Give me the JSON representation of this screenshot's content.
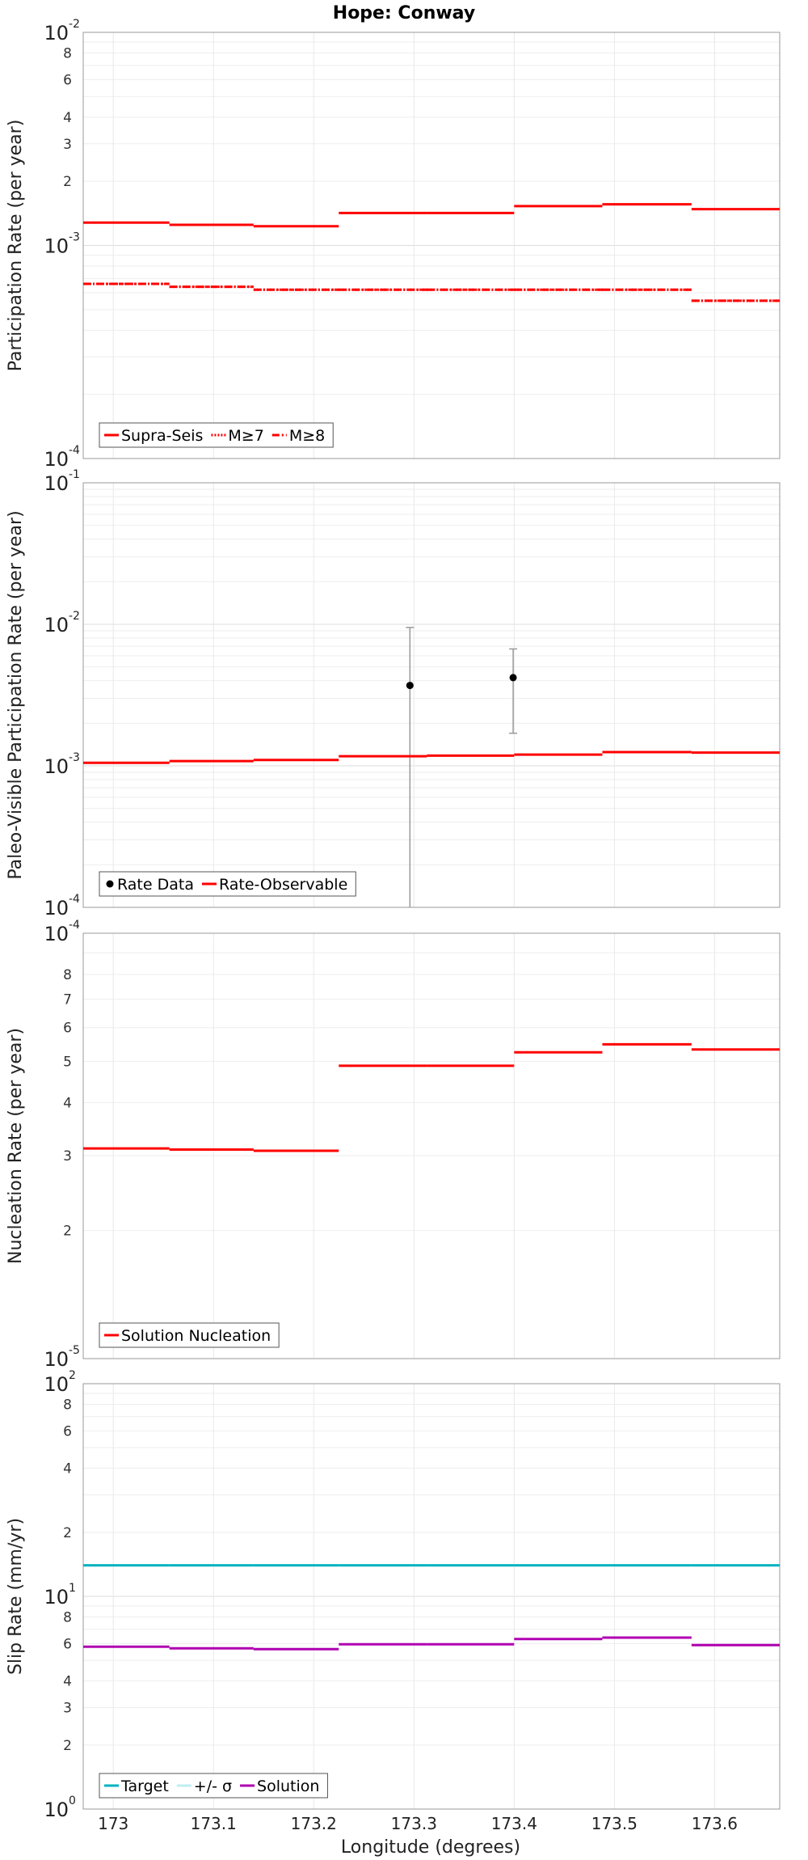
{
  "title": "Hope: Conway",
  "xlabel": "Longitude (degrees)",
  "x_ticks": [
    "173",
    "173.1",
    "173.2",
    "173.3",
    "173.4",
    "173.5",
    "173.6"
  ],
  "colors": {
    "red": "#ff0000",
    "cyan": "#00b3c0",
    "magenta": "#b000b0",
    "black": "#000000",
    "errorbar": "#9a9a9a",
    "grid": "#e4e4e4"
  },
  "chart_data": [
    {
      "type": "line",
      "subplot": "participation",
      "ylabel": "Participation Rate (per year)",
      "yscale": "log",
      "ylim": [
        0.0001,
        0.01
      ],
      "xlim": [
        172.97,
        173.665
      ],
      "decade_labels": [
        {
          "value": 0.01,
          "base": "10",
          "exp": "-2"
        },
        {
          "value": 0.001,
          "base": "10",
          "exp": "-3"
        },
        {
          "value": 0.0001,
          "base": "10",
          "exp": "-4"
        }
      ],
      "minor_labels": [
        "8",
        "6",
        "4",
        "3",
        "2"
      ],
      "x_bins": [
        172.97,
        173.056,
        173.14,
        173.225,
        173.313,
        173.4,
        173.488,
        173.577,
        173.665
      ],
      "series": [
        {
          "name": "Supra-Seis",
          "style": "solid",
          "color": "#ff0000",
          "values": [
            0.00128,
            0.00125,
            0.00123,
            0.00142,
            0.00142,
            0.00153,
            0.00156,
            0.00148
          ]
        },
        {
          "name": "M≥7",
          "style": "dotted",
          "color": "#ff0000",
          "values": [
            0.00066,
            0.00064,
            0.00062,
            0.00062,
            0.00062,
            0.00062,
            0.00062,
            0.00055
          ]
        },
        {
          "name": "M≥8",
          "style": "dashdot",
          "color": "#ff0000",
          "values": [
            0.00066,
            0.00064,
            0.00062,
            0.00062,
            0.00062,
            0.00062,
            0.00062,
            0.00055
          ]
        }
      ],
      "legend": [
        {
          "label": "Supra-Seis",
          "style": "solid",
          "color": "#ff0000"
        },
        {
          "label": "M≥7",
          "style": "dotted",
          "color": "#ff0000"
        },
        {
          "label": "M≥8",
          "style": "dashdot",
          "color": "#ff0000"
        }
      ],
      "legend_position": "lower-left",
      "grid": true
    },
    {
      "type": "line",
      "subplot": "paleo",
      "ylabel": "Paleo-Visible Participation Rate (per year)",
      "yscale": "log",
      "ylim": [
        0.0001,
        0.1
      ],
      "xlim": [
        172.97,
        173.665
      ],
      "decade_labels": [
        {
          "value": 0.1,
          "base": "10",
          "exp": "-1"
        },
        {
          "value": 0.01,
          "base": "10",
          "exp": "-2"
        },
        {
          "value": 0.001,
          "base": "10",
          "exp": "-3"
        },
        {
          "value": 0.0001,
          "base": "10",
          "exp": "-4"
        }
      ],
      "minor_labels": [],
      "x_bins": [
        172.97,
        173.056,
        173.14,
        173.225,
        173.313,
        173.4,
        173.488,
        173.577,
        173.665
      ],
      "series": [
        {
          "name": "Rate-Observable",
          "style": "solid",
          "color": "#ff0000",
          "values": [
            0.00105,
            0.00108,
            0.0011,
            0.00117,
            0.00118,
            0.0012,
            0.00125,
            0.00124
          ]
        }
      ],
      "points": [
        {
          "x": 173.296,
          "y": 0.0037,
          "low": 0.0001,
          "high": 0.0095
        },
        {
          "x": 173.399,
          "y": 0.0042,
          "low": 0.0017,
          "high": 0.0067
        }
      ],
      "legend": [
        {
          "label": "Rate Data",
          "style": "dot",
          "color": "#000000"
        },
        {
          "label": "Rate-Observable",
          "style": "solid",
          "color": "#ff0000"
        }
      ],
      "legend_position": "lower-left",
      "grid": true
    },
    {
      "type": "line",
      "subplot": "nucleation",
      "ylabel": "Nucleation Rate (per year)",
      "yscale": "log",
      "ylim": [
        1e-05,
        0.0001
      ],
      "xlim": [
        172.97,
        173.665
      ],
      "decade_labels": [
        {
          "value": 0.0001,
          "base": "10",
          "exp": "-4"
        },
        {
          "value": 1e-05,
          "base": "10",
          "exp": "-5"
        }
      ],
      "minor_labels": [
        "8",
        "7",
        "6",
        "5",
        "4",
        "3",
        "2"
      ],
      "x_bins": [
        172.97,
        173.056,
        173.14,
        173.225,
        173.313,
        173.4,
        173.488,
        173.577,
        173.665
      ],
      "series": [
        {
          "name": "Solution Nucleation",
          "style": "solid",
          "color": "#ff0000",
          "values": [
            3.12e-05,
            3.1e-05,
            3.08e-05,
            4.88e-05,
            4.88e-05,
            5.25e-05,
            5.48e-05,
            5.33e-05
          ]
        }
      ],
      "legend": [
        {
          "label": "Solution Nucleation",
          "style": "solid",
          "color": "#ff0000"
        }
      ],
      "legend_position": "lower-left",
      "grid": true
    },
    {
      "type": "line",
      "subplot": "slip",
      "ylabel": "Slip Rate (mm/yr)",
      "yscale": "log",
      "ylim": [
        1,
        100
      ],
      "xlim": [
        172.97,
        173.665
      ],
      "decade_labels": [
        {
          "value": 100,
          "base": "10",
          "exp": "2"
        },
        {
          "value": 10,
          "base": "10",
          "exp": "1"
        },
        {
          "value": 1,
          "base": "10",
          "exp": "0"
        }
      ],
      "minor_labels": [
        "8",
        "6",
        "4",
        "2",
        "8",
        "6",
        "4",
        "3",
        "2"
      ],
      "x_bins": [
        172.97,
        173.056,
        173.14,
        173.225,
        173.313,
        173.4,
        173.488,
        173.577,
        173.665
      ],
      "series": [
        {
          "name": "Target",
          "style": "solid",
          "color": "#00b3c0",
          "values": [
            14,
            14,
            14,
            14,
            14,
            14,
            14,
            14
          ]
        },
        {
          "name": "Solution",
          "style": "solid",
          "color": "#b000b0",
          "values": [
            5.8,
            5.7,
            5.65,
            5.95,
            5.95,
            6.3,
            6.4,
            5.9
          ]
        }
      ],
      "legend": [
        {
          "label": "Target",
          "style": "solid",
          "color": "#00b3c0"
        },
        {
          "label": "+/- σ",
          "style": "solid",
          "color": "#bfeef2"
        },
        {
          "label": "Solution",
          "style": "solid",
          "color": "#b000b0"
        }
      ],
      "legend_position": "lower-left",
      "grid": true
    }
  ]
}
